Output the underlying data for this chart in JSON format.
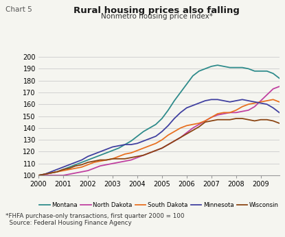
{
  "title": "Rural housing prices also falling",
  "chart_label": "Chart 5",
  "subtitle": "Nonmetro housing price index*",
  "footnote1": "*FHFA purchase-only transactions, first quarter 2000 = 100",
  "footnote2": "  Source: Federal Housing Finance Agency",
  "ylim": [
    100,
    200
  ],
  "yticks": [
    100,
    110,
    120,
    130,
    140,
    150,
    160,
    170,
    180,
    190,
    200
  ],
  "xlim": [
    2000,
    2009.75
  ],
  "xticks": [
    2000,
    2001,
    2002,
    2003,
    2004,
    2005,
    2006,
    2007,
    2008,
    2009
  ],
  "background_color": "#f5f5f0",
  "series": {
    "Montana": {
      "color": "#2e8b8b",
      "data_x": [
        2000.0,
        2000.25,
        2000.5,
        2000.75,
        2001.0,
        2001.25,
        2001.5,
        2001.75,
        2002.0,
        2002.25,
        2002.5,
        2002.75,
        2003.0,
        2003.25,
        2003.5,
        2003.75,
        2004.0,
        2004.25,
        2004.5,
        2004.75,
        2005.0,
        2005.25,
        2005.5,
        2005.75,
        2006.0,
        2006.25,
        2006.5,
        2006.75,
        2007.0,
        2007.25,
        2007.5,
        2007.75,
        2008.0,
        2008.25,
        2008.5,
        2008.75,
        2009.0,
        2009.25,
        2009.5,
        2009.75
      ],
      "data_y": [
        100,
        101,
        102,
        103,
        105,
        107,
        109,
        111,
        113,
        115,
        117,
        119,
        121,
        123,
        126,
        129,
        133,
        137,
        140,
        143,
        148,
        155,
        163,
        170,
        177,
        184,
        188,
        190,
        192,
        193,
        192,
        191,
        191,
        191,
        190,
        188,
        188,
        188,
        186,
        182
      ]
    },
    "North Dakota": {
      "color": "#c040a0",
      "data_x": [
        2000.0,
        2000.25,
        2000.5,
        2000.75,
        2001.0,
        2001.25,
        2001.5,
        2001.75,
        2002.0,
        2002.25,
        2002.5,
        2002.75,
        2003.0,
        2003.25,
        2003.5,
        2003.75,
        2004.0,
        2004.25,
        2004.5,
        2004.75,
        2005.0,
        2005.25,
        2005.5,
        2005.75,
        2006.0,
        2006.25,
        2006.5,
        2006.75,
        2007.0,
        2007.25,
        2007.5,
        2007.75,
        2008.0,
        2008.25,
        2008.5,
        2008.75,
        2009.0,
        2009.25,
        2009.5,
        2009.75
      ],
      "data_y": [
        100,
        100,
        100,
        100,
        100,
        101,
        102,
        103,
        104,
        106,
        108,
        109,
        110,
        111,
        112,
        113,
        115,
        117,
        119,
        121,
        123,
        126,
        129,
        132,
        136,
        140,
        143,
        146,
        149,
        151,
        152,
        153,
        153,
        154,
        155,
        158,
        163,
        168,
        173,
        175
      ]
    },
    "South Dakota": {
      "color": "#e87020",
      "data_x": [
        2000.0,
        2000.25,
        2000.5,
        2000.75,
        2001.0,
        2001.25,
        2001.5,
        2001.75,
        2002.0,
        2002.25,
        2002.5,
        2002.75,
        2003.0,
        2003.25,
        2003.5,
        2003.75,
        2004.0,
        2004.25,
        2004.5,
        2004.75,
        2005.0,
        2005.25,
        2005.5,
        2005.75,
        2006.0,
        2006.25,
        2006.5,
        2006.75,
        2007.0,
        2007.25,
        2007.5,
        2007.75,
        2008.0,
        2008.25,
        2008.5,
        2008.75,
        2009.0,
        2009.25,
        2009.5,
        2009.75
      ],
      "data_y": [
        100,
        101,
        102,
        103,
        104,
        105,
        106,
        107,
        109,
        111,
        112,
        113,
        114,
        116,
        118,
        119,
        121,
        123,
        125,
        127,
        130,
        134,
        137,
        140,
        142,
        143,
        144,
        146,
        149,
        152,
        153,
        153,
        155,
        158,
        160,
        161,
        162,
        163,
        164,
        162
      ]
    },
    "Minnesota": {
      "color": "#4040a0",
      "data_x": [
        2000.0,
        2000.25,
        2000.5,
        2000.75,
        2001.0,
        2001.25,
        2001.5,
        2001.75,
        2002.0,
        2002.25,
        2002.5,
        2002.75,
        2003.0,
        2003.25,
        2003.5,
        2003.75,
        2004.0,
        2004.25,
        2004.5,
        2004.75,
        2005.0,
        2005.25,
        2005.5,
        2005.75,
        2006.0,
        2006.25,
        2006.5,
        2006.75,
        2007.0,
        2007.25,
        2007.5,
        2007.75,
        2008.0,
        2008.25,
        2008.5,
        2008.75,
        2009.0,
        2009.25,
        2009.5,
        2009.75
      ],
      "data_y": [
        100,
        101,
        103,
        105,
        107,
        109,
        111,
        113,
        116,
        118,
        120,
        122,
        124,
        125,
        126,
        126,
        127,
        129,
        131,
        133,
        137,
        142,
        148,
        153,
        157,
        159,
        161,
        163,
        164,
        164,
        163,
        162,
        163,
        164,
        163,
        162,
        161,
        160,
        157,
        153
      ]
    },
    "Wisconsin": {
      "color": "#8b4513",
      "data_x": [
        2000.0,
        2000.25,
        2000.5,
        2000.75,
        2001.0,
        2001.25,
        2001.5,
        2001.75,
        2002.0,
        2002.25,
        2002.5,
        2002.75,
        2003.0,
        2003.25,
        2003.5,
        2003.75,
        2004.0,
        2004.25,
        2004.5,
        2004.75,
        2005.0,
        2005.25,
        2005.5,
        2005.75,
        2006.0,
        2006.25,
        2006.5,
        2006.75,
        2007.0,
        2007.25,
        2007.5,
        2007.75,
        2008.0,
        2008.25,
        2008.5,
        2008.75,
        2009.0,
        2009.25,
        2009.5,
        2009.75
      ],
      "data_y": [
        100,
        101,
        102,
        103,
        105,
        106,
        108,
        109,
        111,
        112,
        113,
        113,
        114,
        114,
        114,
        115,
        116,
        117,
        119,
        121,
        123,
        126,
        129,
        132,
        135,
        138,
        141,
        145,
        146,
        147,
        147,
        147,
        148,
        148,
        147,
        146,
        147,
        147,
        146,
        144
      ]
    }
  }
}
